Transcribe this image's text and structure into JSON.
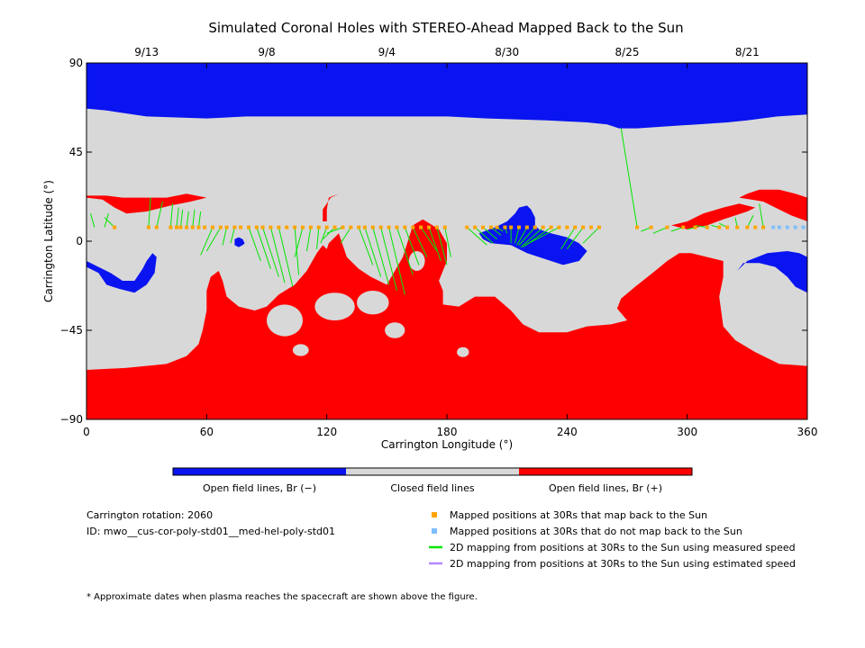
{
  "chart_data": {
    "type": "heatmap",
    "title": "Simulated Coronal Holes with STEREO-Ahead Mapped Back to the Sun",
    "xlabel": "Carrington Longitude (°)",
    "ylabel": "Carrington Latitude (°)",
    "xlim": [
      0,
      360
    ],
    "ylim": [
      -90,
      90
    ],
    "xticks": [
      "0",
      "60",
      "120",
      "180",
      "240",
      "300",
      "360"
    ],
    "yticks": [
      "90",
      "45",
      "0",
      "-45",
      "-90"
    ],
    "top_dates": [
      {
        "label": "9/13",
        "lon": 30
      },
      {
        "label": "9/8",
        "lon": 90
      },
      {
        "label": "9/4",
        "lon": 150
      },
      {
        "label": "8/30",
        "lon": 210
      },
      {
        "label": "8/25",
        "lon": 270
      },
      {
        "label": "8/21",
        "lon": 330
      }
    ],
    "colorbar": [
      {
        "label": "Open field lines, Br (−)",
        "color": "#0a14f0"
      },
      {
        "label": "Closed field lines",
        "color": "#d8d8d8"
      },
      {
        "label": "Open field lines, Br (+)",
        "color": "#ff0000"
      }
    ],
    "mapped_latitude": 7,
    "mapped_longitudes": [
      14,
      31,
      35,
      42,
      45,
      47,
      50,
      53,
      56,
      59,
      63,
      67,
      70,
      74,
      77,
      81,
      85,
      88,
      92,
      96,
      100,
      104,
      108,
      112,
      116,
      120,
      124,
      128,
      132,
      136,
      139,
      143,
      147,
      151,
      155,
      159,
      163,
      167,
      171,
      175,
      179,
      190,
      194,
      198,
      202,
      205,
      209,
      212,
      216,
      220,
      224,
      228,
      232,
      236,
      240,
      244,
      248,
      252,
      256,
      275,
      282,
      290,
      298,
      304,
      310,
      316,
      320,
      325,
      330,
      334,
      338
    ],
    "unmapped_longitudes": [
      343,
      346,
      350,
      354,
      358
    ],
    "green_lines": [
      [
        4,
        7,
        2,
        14
      ],
      [
        9,
        7,
        11,
        14
      ],
      [
        14,
        7,
        9,
        12
      ],
      [
        31,
        7,
        32,
        22
      ],
      [
        35,
        7,
        38,
        20
      ],
      [
        42,
        7,
        43,
        19
      ],
      [
        45,
        7,
        46,
        17
      ],
      [
        47,
        7,
        48,
        16
      ],
      [
        50,
        7,
        51,
        15
      ],
      [
        53,
        7,
        54,
        16
      ],
      [
        56,
        7,
        57,
        15
      ],
      [
        63,
        7,
        57,
        -7
      ],
      [
        67,
        7,
        60,
        -5
      ],
      [
        70,
        7,
        68,
        -2
      ],
      [
        74,
        7,
        72,
        -1
      ],
      [
        81,
        7,
        87,
        -10
      ],
      [
        85,
        7,
        92,
        -14
      ],
      [
        88,
        7,
        96,
        -18
      ],
      [
        92,
        7,
        99,
        -21
      ],
      [
        96,
        7,
        103,
        -23
      ],
      [
        104,
        7,
        106,
        -17
      ],
      [
        108,
        7,
        104,
        -8
      ],
      [
        112,
        7,
        110,
        -5
      ],
      [
        116,
        7,
        115,
        -4
      ],
      [
        120,
        7,
        117,
        -1
      ],
      [
        124,
        7,
        118,
        1
      ],
      [
        128,
        7,
        120,
        4
      ],
      [
        132,
        7,
        127,
        -1
      ],
      [
        136,
        7,
        143,
        -12
      ],
      [
        139,
        7,
        147,
        -18
      ],
      [
        143,
        7,
        151,
        -22
      ],
      [
        147,
        7,
        155,
        -25
      ],
      [
        151,
        7,
        159,
        -27
      ],
      [
        155,
        7,
        163,
        -17
      ],
      [
        159,
        7,
        166,
        -12
      ],
      [
        163,
        7,
        170,
        -8
      ],
      [
        167,
        7,
        175,
        -5
      ],
      [
        171,
        7,
        177,
        -10
      ],
      [
        175,
        7,
        180,
        -12
      ],
      [
        179,
        7,
        182,
        -8
      ],
      [
        190,
        7,
        200,
        -2
      ],
      [
        194,
        7,
        203,
        -1
      ],
      [
        198,
        7,
        205,
        1
      ],
      [
        202,
        7,
        207,
        3
      ],
      [
        205,
        7,
        208,
        5
      ],
      [
        209,
        7,
        210,
        4
      ],
      [
        212,
        7,
        212,
        -1
      ],
      [
        216,
        7,
        214,
        -1
      ],
      [
        220,
        7,
        215,
        -2
      ],
      [
        224,
        7,
        216,
        -2
      ],
      [
        228,
        7,
        217,
        -3
      ],
      [
        232,
        7,
        218,
        -3
      ],
      [
        236,
        7,
        219,
        -2
      ],
      [
        244,
        7,
        237,
        -4
      ],
      [
        248,
        7,
        240,
        -4
      ],
      [
        256,
        7,
        248,
        -1
      ],
      [
        275,
        7,
        267,
        57
      ],
      [
        282,
        7,
        277,
        5
      ],
      [
        290,
        7,
        283,
        4
      ],
      [
        298,
        7,
        292,
        5
      ],
      [
        304,
        7,
        300,
        6
      ],
      [
        310,
        7,
        304,
        8
      ],
      [
        316,
        7,
        312,
        8
      ],
      [
        320,
        7,
        316,
        9
      ],
      [
        325,
        7,
        324,
        12
      ],
      [
        330,
        7,
        333,
        13
      ],
      [
        338,
        7,
        336,
        19
      ]
    ],
    "regions": {
      "north_blue": [
        [
          0,
          90
        ],
        [
          360,
          90
        ],
        [
          360,
          64
        ],
        [
          345,
          63
        ],
        [
          330,
          61
        ],
        [
          320,
          60
        ],
        [
          305,
          59
        ],
        [
          290,
          58
        ],
        [
          275,
          57
        ],
        [
          266,
          57
        ],
        [
          260,
          59
        ],
        [
          250,
          60
        ],
        [
          230,
          61
        ],
        [
          200,
          62
        ],
        [
          180,
          63
        ],
        [
          160,
          63
        ],
        [
          140,
          63
        ],
        [
          120,
          63
        ],
        [
          100,
          63
        ],
        [
          80,
          63
        ],
        [
          60,
          62
        ],
        [
          30,
          63
        ],
        [
          10,
          66
        ],
        [
          0,
          67
        ]
      ],
      "south_red": [
        [
          0,
          -65
        ],
        [
          20,
          -64
        ],
        [
          40,
          -62
        ],
        [
          50,
          -58
        ],
        [
          56,
          -52
        ],
        [
          58,
          -45
        ],
        [
          60,
          -35
        ],
        [
          60,
          -25
        ],
        [
          62,
          -18
        ],
        [
          66,
          -15
        ],
        [
          68,
          -20
        ],
        [
          70,
          -28
        ],
        [
          76,
          -33
        ],
        [
          84,
          -35
        ],
        [
          90,
          -33
        ],
        [
          96,
          -27
        ],
        [
          104,
          -22
        ],
        [
          110,
          -15
        ],
        [
          115,
          -6
        ],
        [
          118,
          -2
        ],
        [
          120,
          -4
        ],
        [
          121,
          -1
        ],
        [
          126,
          4
        ],
        [
          128,
          -2
        ],
        [
          130,
          -8
        ],
        [
          136,
          -14
        ],
        [
          142,
          -18
        ],
        [
          150,
          -22
        ],
        [
          158,
          -8
        ],
        [
          163,
          8
        ],
        [
          168,
          11
        ],
        [
          176,
          6
        ],
        [
          180,
          -1
        ],
        [
          180,
          -10
        ],
        [
          176,
          -20
        ],
        [
          178,
          -25
        ],
        [
          178,
          -32
        ],
        [
          186,
          -33
        ],
        [
          194,
          -28
        ],
        [
          204,
          -28
        ],
        [
          212,
          -35
        ],
        [
          218,
          -42
        ],
        [
          226,
          -46
        ],
        [
          240,
          -46
        ],
        [
          250,
          -43
        ],
        [
          262,
          -42
        ],
        [
          270,
          -40
        ],
        [
          265,
          -34
        ],
        [
          267,
          -29
        ],
        [
          274,
          -23
        ],
        [
          284,
          -15
        ],
        [
          290,
          -10
        ],
        [
          296,
          -6
        ],
        [
          302,
          -6
        ],
        [
          310,
          -8
        ],
        [
          318,
          -10
        ],
        [
          318,
          -18
        ],
        [
          316,
          -28
        ],
        [
          318,
          -43
        ],
        [
          324,
          -50
        ],
        [
          334,
          -56
        ],
        [
          346,
          -62
        ],
        [
          360,
          -63
        ],
        [
          360,
          -90
        ],
        [
          0,
          -90
        ]
      ],
      "red_patches": [
        [
          [
            0,
            22
          ],
          [
            8,
            21
          ],
          [
            14,
            17
          ],
          [
            20,
            14
          ],
          [
            30,
            15
          ],
          [
            42,
            18
          ],
          [
            52,
            20
          ],
          [
            60,
            22
          ],
          [
            50,
            24
          ],
          [
            40,
            22
          ],
          [
            28,
            22
          ],
          [
            18,
            22
          ],
          [
            10,
            23
          ],
          [
            0,
            23
          ]
        ],
        [
          [
            118,
            10
          ],
          [
            118,
            16
          ],
          [
            122,
            22
          ],
          [
            126,
            24
          ],
          [
            121,
            22
          ],
          [
            120,
            16
          ],
          [
            120,
            10
          ]
        ],
        [
          [
            300,
            6
          ],
          [
            310,
            8
          ],
          [
            318,
            11
          ],
          [
            324,
            13
          ],
          [
            330,
            15
          ],
          [
            334,
            17
          ],
          [
            326,
            19
          ],
          [
            318,
            17
          ],
          [
            308,
            14
          ],
          [
            300,
            10
          ],
          [
            292,
            8
          ]
        ],
        [
          [
            326,
            22
          ],
          [
            330,
            24
          ],
          [
            336,
            26
          ],
          [
            346,
            26
          ],
          [
            354,
            24
          ],
          [
            360,
            22
          ],
          [
            360,
            10
          ],
          [
            352,
            13
          ],
          [
            344,
            17
          ],
          [
            338,
            20
          ],
          [
            332,
            21
          ]
        ],
        [
          [
            286,
            -15
          ],
          [
            292,
            -12
          ],
          [
            296,
            -10
          ],
          [
            300,
            -14
          ],
          [
            304,
            -18
          ],
          [
            306,
            -24
          ],
          [
            303,
            -30
          ],
          [
            296,
            -34
          ],
          [
            290,
            -37
          ],
          [
            270,
            -39
          ],
          [
            268,
            -33
          ],
          [
            274,
            -25
          ],
          [
            280,
            -20
          ]
        ]
      ],
      "blue_patches": [
        [
          [
            196,
            4
          ],
          [
            204,
            7
          ],
          [
            210,
            10
          ],
          [
            214,
            14
          ],
          [
            216,
            17
          ],
          [
            220,
            18
          ],
          [
            222,
            16
          ],
          [
            224,
            12
          ],
          [
            224,
            8
          ],
          [
            226,
            6
          ],
          [
            232,
            4
          ],
          [
            240,
            2
          ],
          [
            246,
            -1
          ],
          [
            250,
            -5
          ],
          [
            246,
            -10
          ],
          [
            238,
            -12
          ],
          [
            232,
            -10
          ],
          [
            226,
            -8
          ],
          [
            220,
            -6
          ],
          [
            212,
            -2
          ],
          [
            202,
            -1
          ],
          [
            198,
            1
          ]
        ],
        [
          [
            0,
            -13
          ],
          [
            6,
            -16
          ],
          [
            10,
            -22
          ],
          [
            16,
            -24
          ],
          [
            24,
            -26
          ],
          [
            30,
            -22
          ],
          [
            34,
            -16
          ],
          [
            35,
            -8
          ],
          [
            33,
            -6
          ],
          [
            30,
            -10
          ],
          [
            28,
            -14
          ],
          [
            24,
            -20
          ],
          [
            18,
            -20
          ],
          [
            12,
            -16
          ],
          [
            6,
            -13
          ],
          [
            0,
            -10
          ]
        ],
        [
          [
            74,
            -2
          ],
          [
            76,
            -3
          ],
          [
            78,
            -2
          ],
          [
            79,
            -1
          ],
          [
            78,
            1
          ],
          [
            76,
            2
          ],
          [
            74,
            1
          ]
        ],
        [
          [
            325,
            -15
          ],
          [
            330,
            -10
          ],
          [
            340,
            -6
          ],
          [
            350,
            -5
          ],
          [
            356,
            -6
          ],
          [
            360,
            -8
          ],
          [
            360,
            -26
          ],
          [
            354,
            -23
          ],
          [
            350,
            -18
          ],
          [
            344,
            -13
          ],
          [
            336,
            -11
          ],
          [
            328,
            -11
          ]
        ]
      ],
      "gray_blobs": [
        {
          "lon": 99,
          "lat": -40,
          "rx": 9,
          "ry": 8
        },
        {
          "lon": 124,
          "lat": -33,
          "rx": 10,
          "ry": 7
        },
        {
          "lon": 143,
          "lat": -31,
          "rx": 8,
          "ry": 6
        },
        {
          "lon": 154,
          "lat": -45,
          "rx": 5,
          "ry": 4
        },
        {
          "lon": 107,
          "lat": -55,
          "rx": 4,
          "ry": 3
        },
        {
          "lon": 188,
          "lat": -56,
          "rx": 3,
          "ry": 2.5
        },
        {
          "lon": 165,
          "lat": -10,
          "rx": 4,
          "ry": 5
        }
      ]
    }
  },
  "legend": {
    "rotation": "Carrington rotation: 2060",
    "model_id": "ID: mwo__cus-cor-poly-std01__med-hel-poly-std01",
    "items": [
      {
        "label": "Mapped positions at 30Rs that map back to the Sun",
        "color": "#ffa500",
        "kind": "square"
      },
      {
        "label": "Mapped positions at 30Rs that do not map back to the Sun",
        "color": "#7fbfff",
        "kind": "square"
      },
      {
        "label": "2D mapping from positions at 30Rs to the Sun using measured speed",
        "color": "#00e600",
        "kind": "line"
      },
      {
        "label": "2D mapping from positions at 30Rs to the Sun using estimated speed",
        "color": "#b388ff",
        "kind": "line"
      }
    ],
    "footnote": "* Approximate dates when plasma reaches the spacecraft are shown above the figure."
  },
  "colors": {
    "open_negative": "#0a14f0",
    "closed": "#d8d8d8",
    "open_positive": "#ff0000",
    "mapped": "#ffa500",
    "unmapped": "#7fbfff",
    "measured": "#00e600",
    "estimated": "#b388ff"
  }
}
